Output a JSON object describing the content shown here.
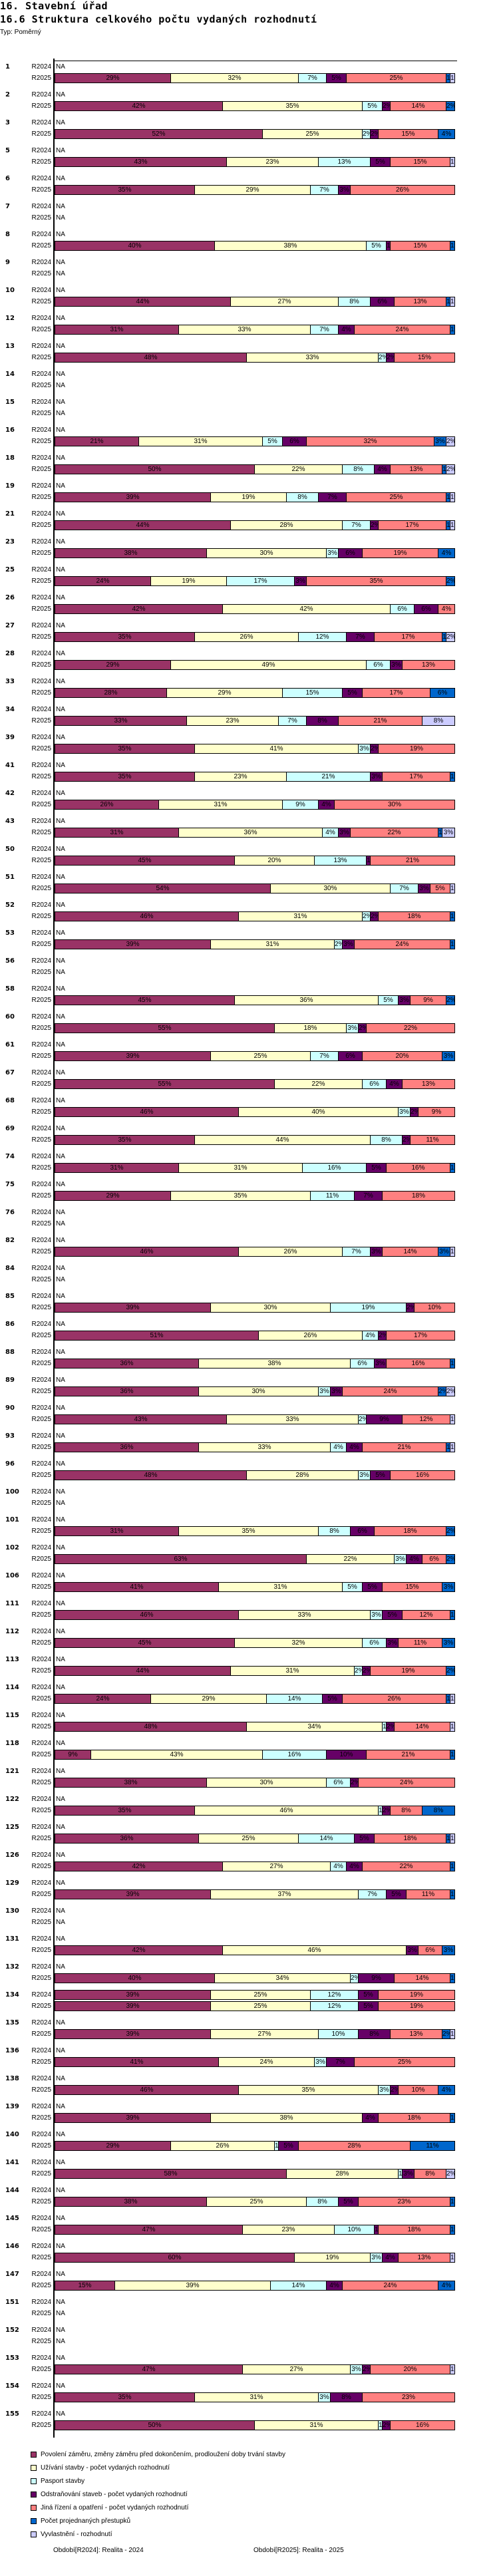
{
  "header": {
    "title": "16. Stavební úřad",
    "subtitle": "16.6 Struktura celkového počtu vydaných rozhodnutí",
    "type_label": "Typ: Poměrný"
  },
  "chart_data": {
    "type": "bar",
    "orientation": "horizontal-stacked-100",
    "title": "16.6 Struktura celkového počtu vydaných rozhodnutí",
    "periods": [
      "R2024",
      "R2025"
    ],
    "na_label": "NA",
    "unit": "%",
    "series": [
      {
        "name": "Povolení záměru,  změny záměru před dokončením, prodloužení doby trvání stavby",
        "color": "#993366"
      },
      {
        "name": "Užívání stavby - počet vydaných rozhodnutí",
        "color": "#FFFFCC"
      },
      {
        "name": "Pasport stavby",
        "color": "#CCFFFF"
      },
      {
        "name": "Odstraňování staveb - počet vydaných rozhodnutí",
        "color": "#660066"
      },
      {
        "name": "Jiná řízení a opatření - počet vydaných rozhodnutí",
        "color": "#FF8080"
      },
      {
        "name": "Počet projednaných přestupků",
        "color": "#0066CC"
      },
      {
        "name": "Vyvlastnění - rozhodnutí",
        "color": "#CCCCFF"
      }
    ],
    "groups": [
      {
        "id": "1",
        "r2024": null,
        "r2025": [
          29,
          32,
          7,
          5,
          25,
          1,
          1
        ]
      },
      {
        "id": "2",
        "r2024": null,
        "r2025": [
          42,
          35,
          5,
          2,
          14,
          2,
          0
        ]
      },
      {
        "id": "3",
        "r2024": null,
        "r2025": [
          52,
          25,
          2,
          2,
          15,
          4,
          0
        ]
      },
      {
        "id": "5",
        "r2024": null,
        "r2025": [
          43,
          23,
          13,
          5,
          15,
          0,
          1
        ]
      },
      {
        "id": "6",
        "r2024": null,
        "r2025": [
          35,
          29,
          7,
          3,
          26,
          0,
          0
        ]
      },
      {
        "id": "7",
        "r2024": null,
        "r2025": null
      },
      {
        "id": "8",
        "r2024": null,
        "r2025": [
          40,
          38,
          5,
          1,
          15,
          1,
          0
        ]
      },
      {
        "id": "9",
        "r2024": null,
        "r2025": null
      },
      {
        "id": "10",
        "r2024": null,
        "r2025": [
          44,
          27,
          8,
          6,
          13,
          1,
          1
        ]
      },
      {
        "id": "12",
        "r2024": null,
        "r2025": [
          31,
          33,
          7,
          4,
          24,
          1,
          0
        ]
      },
      {
        "id": "13",
        "r2024": null,
        "r2025": [
          48,
          33,
          2,
          2,
          15,
          0,
          0
        ]
      },
      {
        "id": "14",
        "r2024": null,
        "r2025": null
      },
      {
        "id": "15",
        "r2024": null,
        "r2025": null
      },
      {
        "id": "16",
        "r2024": null,
        "r2025": [
          21,
          31,
          5,
          6,
          32,
          3,
          2
        ]
      },
      {
        "id": "18",
        "r2024": null,
        "r2025": [
          50,
          22,
          8,
          4,
          13,
          1,
          2
        ]
      },
      {
        "id": "19",
        "r2024": null,
        "r2025": [
          39,
          19,
          8,
          7,
          25,
          1,
          1
        ]
      },
      {
        "id": "21",
        "r2024": null,
        "r2025": [
          44,
          28,
          7,
          2,
          17,
          1,
          1
        ]
      },
      {
        "id": "23",
        "r2024": null,
        "r2025": [
          38,
          30,
          3,
          6,
          19,
          4,
          0
        ]
      },
      {
        "id": "25",
        "r2024": null,
        "r2025": [
          24,
          19,
          17,
          3,
          35,
          2,
          0
        ]
      },
      {
        "id": "26",
        "r2024": null,
        "r2025": [
          42,
          42,
          6,
          6,
          4,
          0,
          0
        ]
      },
      {
        "id": "27",
        "r2024": null,
        "r2025": [
          35,
          26,
          12,
          7,
          17,
          1,
          2
        ]
      },
      {
        "id": "28",
        "r2024": null,
        "r2025": [
          29,
          49,
          6,
          3,
          13,
          0,
          0
        ]
      },
      {
        "id": "33",
        "r2024": null,
        "r2025": [
          28,
          29,
          15,
          5,
          17,
          6,
          0
        ]
      },
      {
        "id": "34",
        "r2024": null,
        "r2025": [
          33,
          23,
          7,
          8,
          21,
          0,
          8
        ]
      },
      {
        "id": "39",
        "r2024": null,
        "r2025": [
          35,
          41,
          3,
          2,
          19,
          0,
          0
        ]
      },
      {
        "id": "41",
        "r2024": null,
        "r2025": [
          35,
          23,
          21,
          3,
          17,
          1,
          0
        ]
      },
      {
        "id": "42",
        "r2024": null,
        "r2025": [
          26,
          31,
          9,
          4,
          30,
          0,
          0
        ]
      },
      {
        "id": "43",
        "r2024": null,
        "r2025": [
          31,
          36,
          4,
          3,
          22,
          1,
          3
        ]
      },
      {
        "id": "50",
        "r2024": null,
        "r2025": [
          45,
          20,
          13,
          1,
          21,
          0,
          0
        ]
      },
      {
        "id": "51",
        "r2024": null,
        "r2025": [
          54,
          30,
          7,
          3,
          5,
          0,
          1
        ]
      },
      {
        "id": "52",
        "r2024": null,
        "r2025": [
          46,
          31,
          2,
          2,
          18,
          1,
          0
        ]
      },
      {
        "id": "53",
        "r2024": null,
        "r2025": [
          39,
          31,
          2,
          3,
          24,
          1,
          0
        ]
      },
      {
        "id": "56",
        "r2024": null,
        "r2025": null
      },
      {
        "id": "58",
        "r2024": null,
        "r2025": [
          45,
          36,
          5,
          3,
          9,
          2,
          0
        ]
      },
      {
        "id": "60",
        "r2024": null,
        "r2025": [
          55,
          18,
          3,
          2,
          22,
          0,
          0
        ]
      },
      {
        "id": "61",
        "r2024": null,
        "r2025": [
          39,
          25,
          7,
          6,
          20,
          3,
          0
        ]
      },
      {
        "id": "67",
        "r2024": null,
        "r2025": [
          55,
          22,
          6,
          4,
          13,
          0,
          0
        ]
      },
      {
        "id": "68",
        "r2024": null,
        "r2025": [
          46,
          40,
          3,
          2,
          9,
          0,
          0
        ]
      },
      {
        "id": "69",
        "r2024": null,
        "r2025": [
          35,
          44,
          8,
          2,
          11,
          0,
          0
        ]
      },
      {
        "id": "74",
        "r2024": null,
        "r2025": [
          31,
          31,
          16,
          5,
          16,
          1,
          0
        ]
      },
      {
        "id": "75",
        "r2024": null,
        "r2025": [
          29,
          35,
          11,
          7,
          18,
          0,
          0
        ]
      },
      {
        "id": "76",
        "r2024": null,
        "r2025": null
      },
      {
        "id": "82",
        "r2024": null,
        "r2025": [
          46,
          26,
          7,
          3,
          14,
          3,
          1
        ]
      },
      {
        "id": "84",
        "r2024": null,
        "r2025": null
      },
      {
        "id": "85",
        "r2024": null,
        "r2025": [
          39,
          30,
          19,
          2,
          10,
          0,
          0
        ]
      },
      {
        "id": "86",
        "r2024": null,
        "r2025": [
          51,
          26,
          4,
          2,
          17,
          0,
          0
        ]
      },
      {
        "id": "88",
        "r2024": null,
        "r2025": [
          36,
          38,
          6,
          3,
          16,
          1,
          0
        ]
      },
      {
        "id": "89",
        "r2024": null,
        "r2025": [
          36,
          30,
          3,
          3,
          24,
          2,
          2
        ]
      },
      {
        "id": "90",
        "r2024": null,
        "r2025": [
          43,
          33,
          2,
          9,
          12,
          0,
          1
        ]
      },
      {
        "id": "93",
        "r2024": null,
        "r2025": [
          36,
          33,
          4,
          4,
          21,
          1,
          1
        ]
      },
      {
        "id": "96",
        "r2024": null,
        "r2025": [
          48,
          28,
          3,
          5,
          16,
          0,
          0
        ]
      },
      {
        "id": "100",
        "r2024": null,
        "r2025": null
      },
      {
        "id": "101",
        "r2024": null,
        "r2025": [
          31,
          35,
          8,
          6,
          18,
          2,
          0
        ]
      },
      {
        "id": "102",
        "r2024": null,
        "r2025": [
          63,
          22,
          3,
          4,
          6,
          2,
          0
        ]
      },
      {
        "id": "106",
        "r2024": null,
        "r2025": [
          41,
          31,
          5,
          5,
          15,
          3,
          0
        ]
      },
      {
        "id": "111",
        "r2024": null,
        "r2025": [
          46,
          33,
          3,
          5,
          12,
          1,
          0
        ]
      },
      {
        "id": "112",
        "r2024": null,
        "r2025": [
          45,
          32,
          6,
          3,
          11,
          3,
          0
        ]
      },
      {
        "id": "113",
        "r2024": null,
        "r2025": [
          44,
          31,
          2,
          2,
          19,
          2,
          0
        ]
      },
      {
        "id": "114",
        "r2024": null,
        "r2025": [
          24,
          29,
          14,
          5,
          26,
          1,
          1
        ]
      },
      {
        "id": "115",
        "r2024": null,
        "r2025": [
          48,
          34,
          1,
          2,
          14,
          0,
          1
        ]
      },
      {
        "id": "118",
        "r2024": null,
        "r2025": [
          9,
          43,
          16,
          10,
          21,
          1,
          0
        ]
      },
      {
        "id": "121",
        "r2024": null,
        "r2025": [
          38,
          30,
          6,
          2,
          24,
          0,
          0
        ]
      },
      {
        "id": "122",
        "r2024": null,
        "r2025": [
          35,
          46,
          1,
          2,
          8,
          8,
          0
        ]
      },
      {
        "id": "125",
        "r2024": null,
        "r2025": [
          36,
          25,
          14,
          5,
          18,
          1,
          1
        ]
      },
      {
        "id": "126",
        "r2024": null,
        "r2025": [
          42,
          27,
          4,
          4,
          22,
          1,
          0
        ]
      },
      {
        "id": "129",
        "r2024": null,
        "r2025": [
          39,
          37,
          7,
          5,
          11,
          1,
          0
        ]
      },
      {
        "id": "130",
        "r2024": null,
        "r2025": null
      },
      {
        "id": "131",
        "r2024": null,
        "r2025": [
          42,
          46,
          0,
          3,
          6,
          3,
          0
        ]
      },
      {
        "id": "132",
        "r2024": null,
        "r2025": [
          40,
          34,
          2,
          9,
          14,
          1,
          0
        ]
      },
      {
        "id": "134",
        "r2024": [
          39,
          25,
          12,
          5,
          19,
          0,
          0
        ],
        "r2025": [
          39,
          25,
          12,
          5,
          19,
          0,
          0
        ]
      },
      {
        "id": "135",
        "r2024": null,
        "r2025": [
          39,
          27,
          10,
          8,
          13,
          2,
          1
        ]
      },
      {
        "id": "136",
        "r2024": null,
        "r2025": [
          41,
          24,
          3,
          7,
          25,
          0,
          0
        ]
      },
      {
        "id": "138",
        "r2024": null,
        "r2025": [
          46,
          35,
          3,
          2,
          10,
          4,
          0
        ]
      },
      {
        "id": "139",
        "r2024": null,
        "r2025": [
          39,
          38,
          0,
          4,
          18,
          1,
          0
        ]
      },
      {
        "id": "140",
        "r2024": null,
        "r2025": [
          29,
          26,
          1,
          5,
          28,
          11,
          0
        ]
      },
      {
        "id": "141",
        "r2024": null,
        "r2025": [
          58,
          28,
          1,
          3,
          8,
          0,
          2
        ]
      },
      {
        "id": "144",
        "r2024": null,
        "r2025": [
          38,
          25,
          8,
          5,
          23,
          1,
          0
        ]
      },
      {
        "id": "145",
        "r2024": null,
        "r2025": [
          47,
          23,
          10,
          1,
          18,
          1,
          0
        ]
      },
      {
        "id": "146",
        "r2024": null,
        "r2025": [
          60,
          19,
          3,
          4,
          13,
          0,
          1
        ]
      },
      {
        "id": "147",
        "r2024": null,
        "r2025": [
          15,
          39,
          14,
          4,
          24,
          4,
          0
        ]
      },
      {
        "id": "151",
        "r2024": null,
        "r2025": null
      },
      {
        "id": "152",
        "r2024": null,
        "r2025": null
      },
      {
        "id": "153",
        "r2024": null,
        "r2025": [
          47,
          27,
          3,
          2,
          20,
          0,
          1
        ]
      },
      {
        "id": "154",
        "r2024": null,
        "r2025": [
          35,
          31,
          3,
          8,
          23,
          0,
          0
        ]
      },
      {
        "id": "155",
        "r2024": null,
        "r2025": [
          50,
          31,
          1,
          2,
          16,
          0,
          0
        ]
      }
    ],
    "legend_position": "bottom-left"
  },
  "footer": {
    "period_2024": "Období[R2024]: Realita - 2024",
    "period_2025": "Období[R2025]: Realita - 2025"
  }
}
